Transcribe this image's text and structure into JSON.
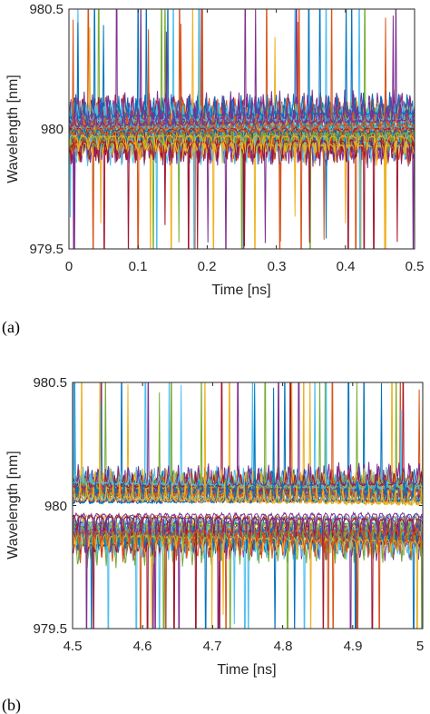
{
  "chart_data": [
    {
      "panel_label": "(a)",
      "type": "line",
      "xlabel": "Time [ns]",
      "ylabel": "Wavelength [nm]",
      "xlim": [
        0,
        0.5
      ],
      "ylim": [
        979.5,
        980.5
      ],
      "xticks": [
        "0",
        "0.1",
        "0.2",
        "0.3",
        "0.4",
        "0.5"
      ],
      "yticks": [
        "979.5",
        "980",
        "980.5"
      ],
      "grid": false,
      "legend": "none",
      "series_count": 60,
      "center_wavelength": 980.0,
      "band_halfwidth": 0.09,
      "spike_period_ns": 0.012,
      "description_values": "Dense ensemble of ~60 oscillating wavelength traces centered near 980.0 nm with upward/downward spikes reaching 979.5 and 980.5 nm",
      "palette": [
        "#0072BD",
        "#D95319",
        "#EDB120",
        "#7E2F8E",
        "#77AC30",
        "#4DBEEE",
        "#A2142F"
      ]
    },
    {
      "panel_label": "(b)",
      "type": "line",
      "xlabel": "Time [ns]",
      "ylabel": "Wavelength [nm]",
      "xlim": [
        4.5,
        5
      ],
      "ylim": [
        979.5,
        980.5
      ],
      "xticks": [
        "4.5",
        "4.6",
        "4.7",
        "4.8",
        "4.9",
        "5"
      ],
      "yticks": [
        "979.5",
        "980",
        "980.5"
      ],
      "grid": false,
      "legend": "none",
      "series_count": 60,
      "center_wavelength": 980.0,
      "band_halfwidth": 0.13,
      "spike_period_ns": 0.0115,
      "description_values": "Split ensemble: upper group near 980.05 nm with upward peaks, lower group near 979.9 nm with downward dips, strong spikes to the axis limits",
      "palette": [
        "#0072BD",
        "#D95319",
        "#EDB120",
        "#7E2F8E",
        "#77AC30",
        "#4DBEEE",
        "#A2142F"
      ]
    }
  ]
}
